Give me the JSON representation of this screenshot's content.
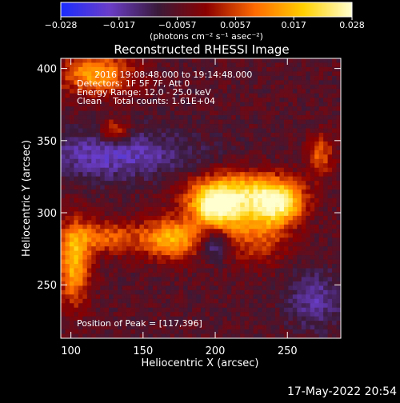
{
  "colorbar": {
    "ticks": [
      "−0.028",
      "−0.017",
      "−0.0057",
      "0.0057",
      "0.017",
      "0.028"
    ],
    "unit_label": "(photons cm⁻² s⁻¹ asec⁻²)",
    "range": [
      -0.028,
      0.028
    ],
    "colors": [
      "#1a2cff",
      "#6a3dc8",
      "#3a1a3a",
      "#8b0000",
      "#ff6a00",
      "#ffd000",
      "#ffffd0"
    ]
  },
  "chart_data": {
    "type": "heatmap",
    "title": "Reconstructed RHESSI Image",
    "xlabel": "Heliocentric X (arcsec)",
    "ylabel": "Heliocentric Y (arcsec)",
    "xlim": [
      93,
      287
    ],
    "ylim": [
      213,
      407
    ],
    "x_ticks": [
      100,
      150,
      200,
      250
    ],
    "y_ticks": [
      250,
      300,
      350,
      400
    ],
    "annotations": [
      "2016 19:08:48.000 to 19:14:48.000",
      "Detectors: 1F 5F 7F, Att 0",
      "Energy Range: 12.0 - 25.0 keV",
      "Clean    Total counts: 1.61E+04"
    ],
    "peak_label": "Position of Peak = [117,396]",
    "peak": [
      117,
      396
    ],
    "sources": [
      {
        "x": 200,
        "y": 303,
        "amp": 0.028,
        "sx": 12,
        "sy": 10
      },
      {
        "x": 245,
        "y": 307,
        "amp": 0.024,
        "sx": 12,
        "sy": 10
      },
      {
        "x": 170,
        "y": 282,
        "amp": 0.022,
        "sx": 14,
        "sy": 10
      },
      {
        "x": 228,
        "y": 290,
        "amp": 0.016,
        "sx": 16,
        "sy": 16
      },
      {
        "x": 117,
        "y": 396,
        "amp": 0.02,
        "sx": 18,
        "sy": 10
      },
      {
        "x": 102,
        "y": 265,
        "amp": 0.022,
        "sx": 8,
        "sy": 20
      },
      {
        "x": 125,
        "y": 283,
        "amp": 0.014,
        "sx": 18,
        "sy": 8
      },
      {
        "x": 130,
        "y": 357,
        "amp": 0.014,
        "sx": 7,
        "sy": 6
      },
      {
        "x": 273,
        "y": 340,
        "amp": 0.014,
        "sx": 6,
        "sy": 10
      },
      {
        "x": 215,
        "y": 315,
        "amp": 0.02,
        "sx": 24,
        "sy": 10
      }
    ],
    "holes": [
      {
        "x": 200,
        "y": 278,
        "amp": 0.012,
        "sx": 7,
        "sy": 7
      },
      {
        "x": 130,
        "y": 340,
        "amp": 0.012,
        "sx": 40,
        "sy": 12
      },
      {
        "x": 270,
        "y": 240,
        "amp": 0.01,
        "sx": 14,
        "sy": 14
      }
    ],
    "background": -0.006
  },
  "timestamp": "17-May-2022 20:54"
}
